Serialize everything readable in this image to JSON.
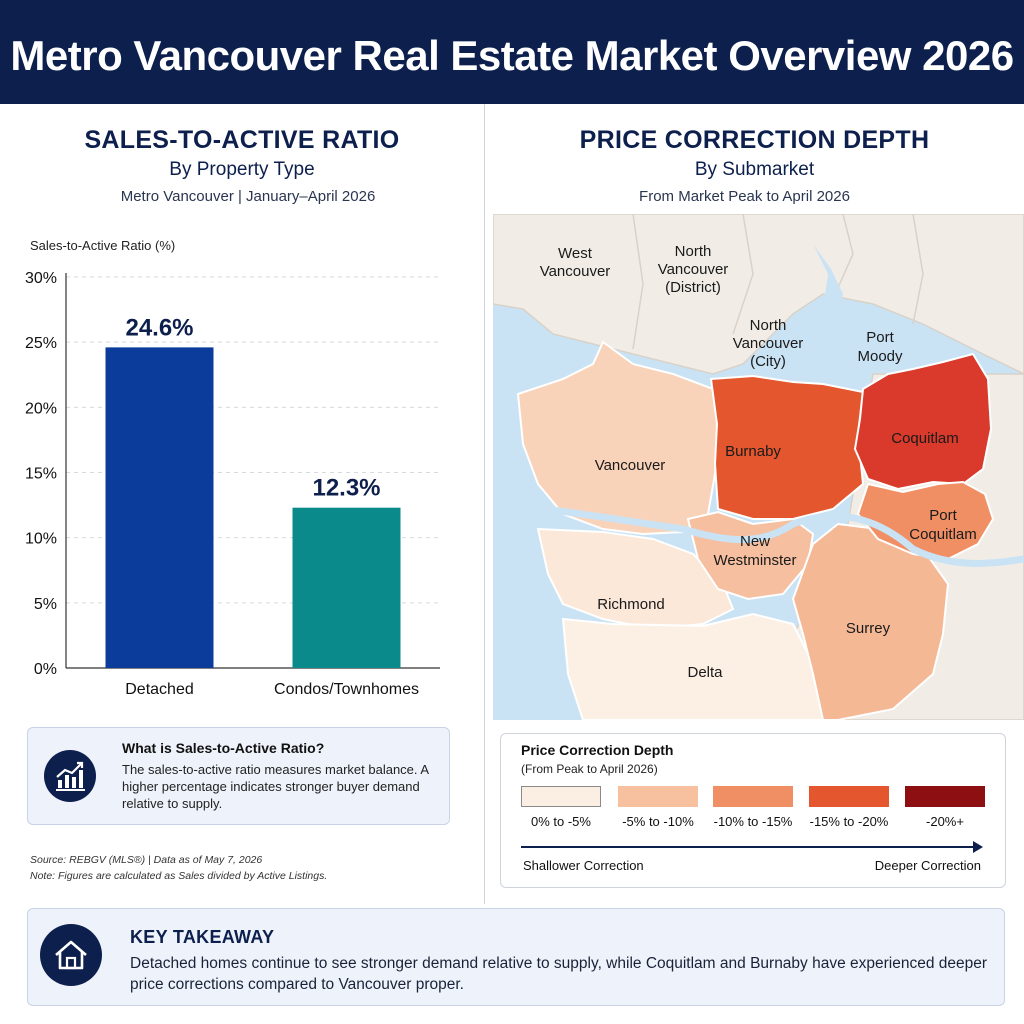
{
  "header": {
    "title": "Metro Vancouver Real Estate Market Overview 2026"
  },
  "left_panel": {
    "title": "SALES-TO-ACTIVE RATIO",
    "subtitle": "By Property Type",
    "note": "Metro Vancouver  |  January–April 2026",
    "info": {
      "title": "What is Sales-to-Active Ratio?",
      "text": "The sales-to-active ratio measures market balance. A higher percentage indicates stronger buyer demand relative to supply.",
      "icon": "bar-chart-icon"
    },
    "source_line1": "Source: REBGV (MLS®)  |  Data as of May 7, 2026",
    "source_line2": "Note: Figures are calculated as Sales divided by Active Listings."
  },
  "right_panel": {
    "title": "PRICE CORRECTION DEPTH",
    "subtitle": "By Submarket",
    "note": "From Market Peak to April 2026",
    "legend": {
      "title": "Price Correction Depth",
      "subtitle": "(From Peak to April 2026)",
      "items": [
        {
          "label": "0% to -5%",
          "color": "#fbeee3"
        },
        {
          "label": "-5% to -10%",
          "color": "#f7c1a0"
        },
        {
          "label": "-10% to -15%",
          "color": "#f08f63"
        },
        {
          "label": "-15% to -20%",
          "color": "#e4572e"
        },
        {
          "label": "-20%+",
          "color": "#8e0f12"
        }
      ],
      "arrow_left": "Shallower Correction",
      "arrow_right": "Deeper Correction"
    }
  },
  "takeaway": {
    "title": "KEY TAKEAWAY",
    "text": "Detached homes continue to see stronger demand relative to supply, while Coquitlam and Burnaby have experienced deeper price corrections compared to Vancouver proper.",
    "icon": "house-icon"
  },
  "chart_data": [
    {
      "type": "bar",
      "title": "SALES-TO-ACTIVE RATIO",
      "subtitle": "By Property Type",
      "ylabel": "Sales-to-Active Ratio (%)",
      "categories": [
        "Detached",
        "Condos/Townhomes"
      ],
      "values": [
        24.6,
        12.3
      ],
      "value_labels": [
        "24.6%",
        "12.3%"
      ],
      "colors": [
        "#0b3c9c",
        "#0a8a8a"
      ],
      "ylim": [
        0,
        30
      ],
      "yticks": [
        0,
        5,
        10,
        15,
        20,
        25,
        30
      ],
      "ytick_labels": [
        "0%",
        "5%",
        "10%",
        "15%",
        "20%",
        "25%",
        "30%"
      ],
      "grid": true
    },
    {
      "type": "choropleth",
      "title": "PRICE CORRECTION DEPTH",
      "subtitle": "By Submarket",
      "regions": [
        {
          "name": "Vancouver",
          "band": "0% to -5%",
          "fill": "#f9d3b9"
        },
        {
          "name": "Burnaby",
          "band": "-15% to -20%",
          "fill": "#e4572e"
        },
        {
          "name": "Coquitlam",
          "band": "-20%+",
          "fill": "#d93a2b"
        },
        {
          "name": "New Westminster",
          "band": "-5% to -10%",
          "fill": "#f6bfa0"
        },
        {
          "name": "Port Coquitlam",
          "band": "-10% to -15%",
          "fill": "#f08f63"
        },
        {
          "name": "Surrey",
          "band": "-5% to -10%",
          "fill": "#f5b895"
        },
        {
          "name": "Richmond",
          "band": "0% to -5%",
          "fill": "#fbe8d8"
        },
        {
          "name": "Delta",
          "band": "0% to -5%",
          "fill": "#fcf0e4"
        }
      ],
      "context_labels": [
        "West Vancouver",
        "North Vancouver (District)",
        "North Vancouver (City)",
        "Port Moody"
      ]
    }
  ]
}
